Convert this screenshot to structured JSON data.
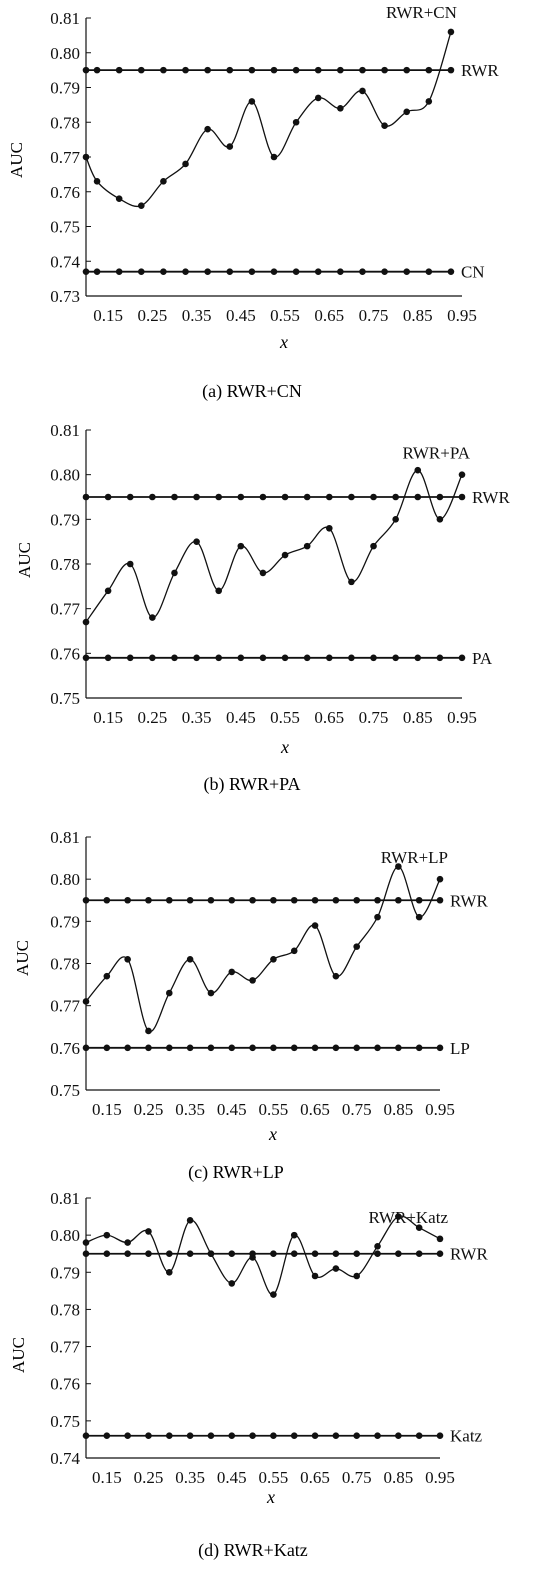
{
  "figure": {
    "panels": [
      {
        "caption": "(a) RWR+CN",
        "chart_data": {
          "type": "line",
          "xlabel": "x",
          "ylabel": "AUC",
          "xlim": [
            0.1,
            0.95
          ],
          "ylim": [
            0.73,
            0.81
          ],
          "x_ticks": [
            0.15,
            0.25,
            0.35,
            0.45,
            0.55,
            0.65,
            0.75,
            0.85,
            0.95
          ],
          "y_ticks": [
            0.73,
            0.74,
            0.75,
            0.76,
            0.77,
            0.78,
            0.79,
            0.8,
            0.81
          ],
          "x": [
            0.1,
            0.125,
            0.175,
            0.225,
            0.275,
            0.325,
            0.375,
            0.425,
            0.475,
            0.525,
            0.575,
            0.625,
            0.675,
            0.725,
            0.775,
            0.825,
            0.875,
            0.925
          ],
          "series": [
            {
              "name": "RWR+CN",
              "smooth": true,
              "values": [
                0.77,
                0.763,
                0.758,
                0.756,
                0.763,
                0.768,
                0.778,
                0.773,
                0.786,
                0.77,
                0.78,
                0.787,
                0.784,
                0.789,
                0.779,
                0.783,
                0.786,
                0.806
              ]
            },
            {
              "name": "RWR",
              "smooth": false,
              "values": [
                0.795,
                0.795,
                0.795,
                0.795,
                0.795,
                0.795,
                0.795,
                0.795,
                0.795,
                0.795,
                0.795,
                0.795,
                0.795,
                0.795,
                0.795,
                0.795,
                0.795,
                0.795
              ]
            },
            {
              "name": "CN",
              "smooth": false,
              "values": [
                0.737,
                0.737,
                0.737,
                0.737,
                0.737,
                0.737,
                0.737,
                0.737,
                0.737,
                0.737,
                0.737,
                0.737,
                0.737,
                0.737,
                0.737,
                0.737,
                0.737,
                0.737
              ]
            }
          ]
        }
      },
      {
        "caption": "(b) RWR+PA",
        "chart_data": {
          "type": "line",
          "xlabel": "x",
          "ylabel": "AUC",
          "xlim": [
            0.1,
            0.95
          ],
          "ylim": [
            0.75,
            0.81
          ],
          "x_ticks": [
            0.15,
            0.25,
            0.35,
            0.45,
            0.55,
            0.65,
            0.75,
            0.85,
            0.95
          ],
          "y_ticks": [
            0.75,
            0.76,
            0.77,
            0.78,
            0.79,
            0.8,
            0.81
          ],
          "x": [
            0.1,
            0.15,
            0.2,
            0.25,
            0.3,
            0.35,
            0.4,
            0.45,
            0.5,
            0.55,
            0.6,
            0.65,
            0.7,
            0.75,
            0.8,
            0.85,
            0.9,
            0.95
          ],
          "series": [
            {
              "name": "RWR+PA",
              "smooth": true,
              "values": [
                0.767,
                0.774,
                0.78,
                0.768,
                0.778,
                0.785,
                0.774,
                0.784,
                0.778,
                0.782,
                0.784,
                0.788,
                0.776,
                0.784,
                0.79,
                0.801,
                0.79,
                0.8
              ]
            },
            {
              "name": "RWR",
              "smooth": false,
              "values": [
                0.795,
                0.795,
                0.795,
                0.795,
                0.795,
                0.795,
                0.795,
                0.795,
                0.795,
                0.795,
                0.795,
                0.795,
                0.795,
                0.795,
                0.795,
                0.795,
                0.795,
                0.795
              ]
            },
            {
              "name": "PA",
              "smooth": false,
              "values": [
                0.759,
                0.759,
                0.759,
                0.759,
                0.759,
                0.759,
                0.759,
                0.759,
                0.759,
                0.759,
                0.759,
                0.759,
                0.759,
                0.759,
                0.759,
                0.759,
                0.759,
                0.759
              ]
            }
          ]
        }
      },
      {
        "caption": "(c) RWR+LP",
        "chart_data": {
          "type": "line",
          "xlabel": "x",
          "ylabel": "AUC",
          "xlim": [
            0.1,
            0.95
          ],
          "ylim": [
            0.75,
            0.81
          ],
          "x_ticks": [
            0.15,
            0.25,
            0.35,
            0.45,
            0.55,
            0.65,
            0.75,
            0.85,
            0.95
          ],
          "y_ticks": [
            0.75,
            0.76,
            0.77,
            0.78,
            0.79,
            0.8,
            0.81
          ],
          "x": [
            0.1,
            0.15,
            0.2,
            0.25,
            0.3,
            0.35,
            0.4,
            0.45,
            0.5,
            0.55,
            0.6,
            0.65,
            0.7,
            0.75,
            0.8,
            0.85,
            0.9,
            0.95
          ],
          "series": [
            {
              "name": "RWR+LP",
              "smooth": true,
              "values": [
                0.771,
                0.777,
                0.781,
                0.764,
                0.773,
                0.781,
                0.773,
                0.778,
                0.776,
                0.781,
                0.783,
                0.789,
                0.777,
                0.784,
                0.791,
                0.803,
                0.791,
                0.8
              ]
            },
            {
              "name": "RWR",
              "smooth": false,
              "values": [
                0.795,
                0.795,
                0.795,
                0.795,
                0.795,
                0.795,
                0.795,
                0.795,
                0.795,
                0.795,
                0.795,
                0.795,
                0.795,
                0.795,
                0.795,
                0.795,
                0.795,
                0.795
              ]
            },
            {
              "name": "LP",
              "smooth": false,
              "values": [
                0.76,
                0.76,
                0.76,
                0.76,
                0.76,
                0.76,
                0.76,
                0.76,
                0.76,
                0.76,
                0.76,
                0.76,
                0.76,
                0.76,
                0.76,
                0.76,
                0.76,
                0.76
              ]
            }
          ]
        }
      },
      {
        "caption": "(d) RWR+Katz",
        "chart_data": {
          "type": "line",
          "xlabel": "x",
          "ylabel": "AUC",
          "xlim": [
            0.1,
            0.95
          ],
          "ylim": [
            0.74,
            0.81
          ],
          "x_ticks": [
            0.15,
            0.25,
            0.35,
            0.45,
            0.55,
            0.65,
            0.75,
            0.85,
            0.95
          ],
          "y_ticks": [
            0.74,
            0.75,
            0.76,
            0.77,
            0.78,
            0.79,
            0.8,
            0.81
          ],
          "x": [
            0.1,
            0.15,
            0.2,
            0.25,
            0.3,
            0.35,
            0.4,
            0.45,
            0.5,
            0.55,
            0.6,
            0.65,
            0.7,
            0.75,
            0.8,
            0.85,
            0.9,
            0.95
          ],
          "series": [
            {
              "name": "RWR+Katz",
              "smooth": true,
              "values": [
                0.798,
                0.8,
                0.798,
                0.801,
                0.79,
                0.804,
                0.795,
                0.787,
                0.794,
                0.784,
                0.8,
                0.789,
                0.791,
                0.789,
                0.797,
                0.805,
                0.802,
                0.799
              ]
            },
            {
              "name": "RWR",
              "smooth": false,
              "values": [
                0.795,
                0.795,
                0.795,
                0.795,
                0.795,
                0.795,
                0.795,
                0.795,
                0.795,
                0.795,
                0.795,
                0.795,
                0.795,
                0.795,
                0.795,
                0.795,
                0.795,
                0.795
              ]
            },
            {
              "name": "Katz",
              "smooth": false,
              "values": [
                0.746,
                0.746,
                0.746,
                0.746,
                0.746,
                0.746,
                0.746,
                0.746,
                0.746,
                0.746,
                0.746,
                0.746,
                0.746,
                0.746,
                0.746,
                0.746,
                0.746,
                0.746
              ]
            }
          ]
        }
      }
    ],
    "colors": {
      "line": "#111111",
      "marker": "#111111",
      "background": "#ffffff"
    }
  }
}
